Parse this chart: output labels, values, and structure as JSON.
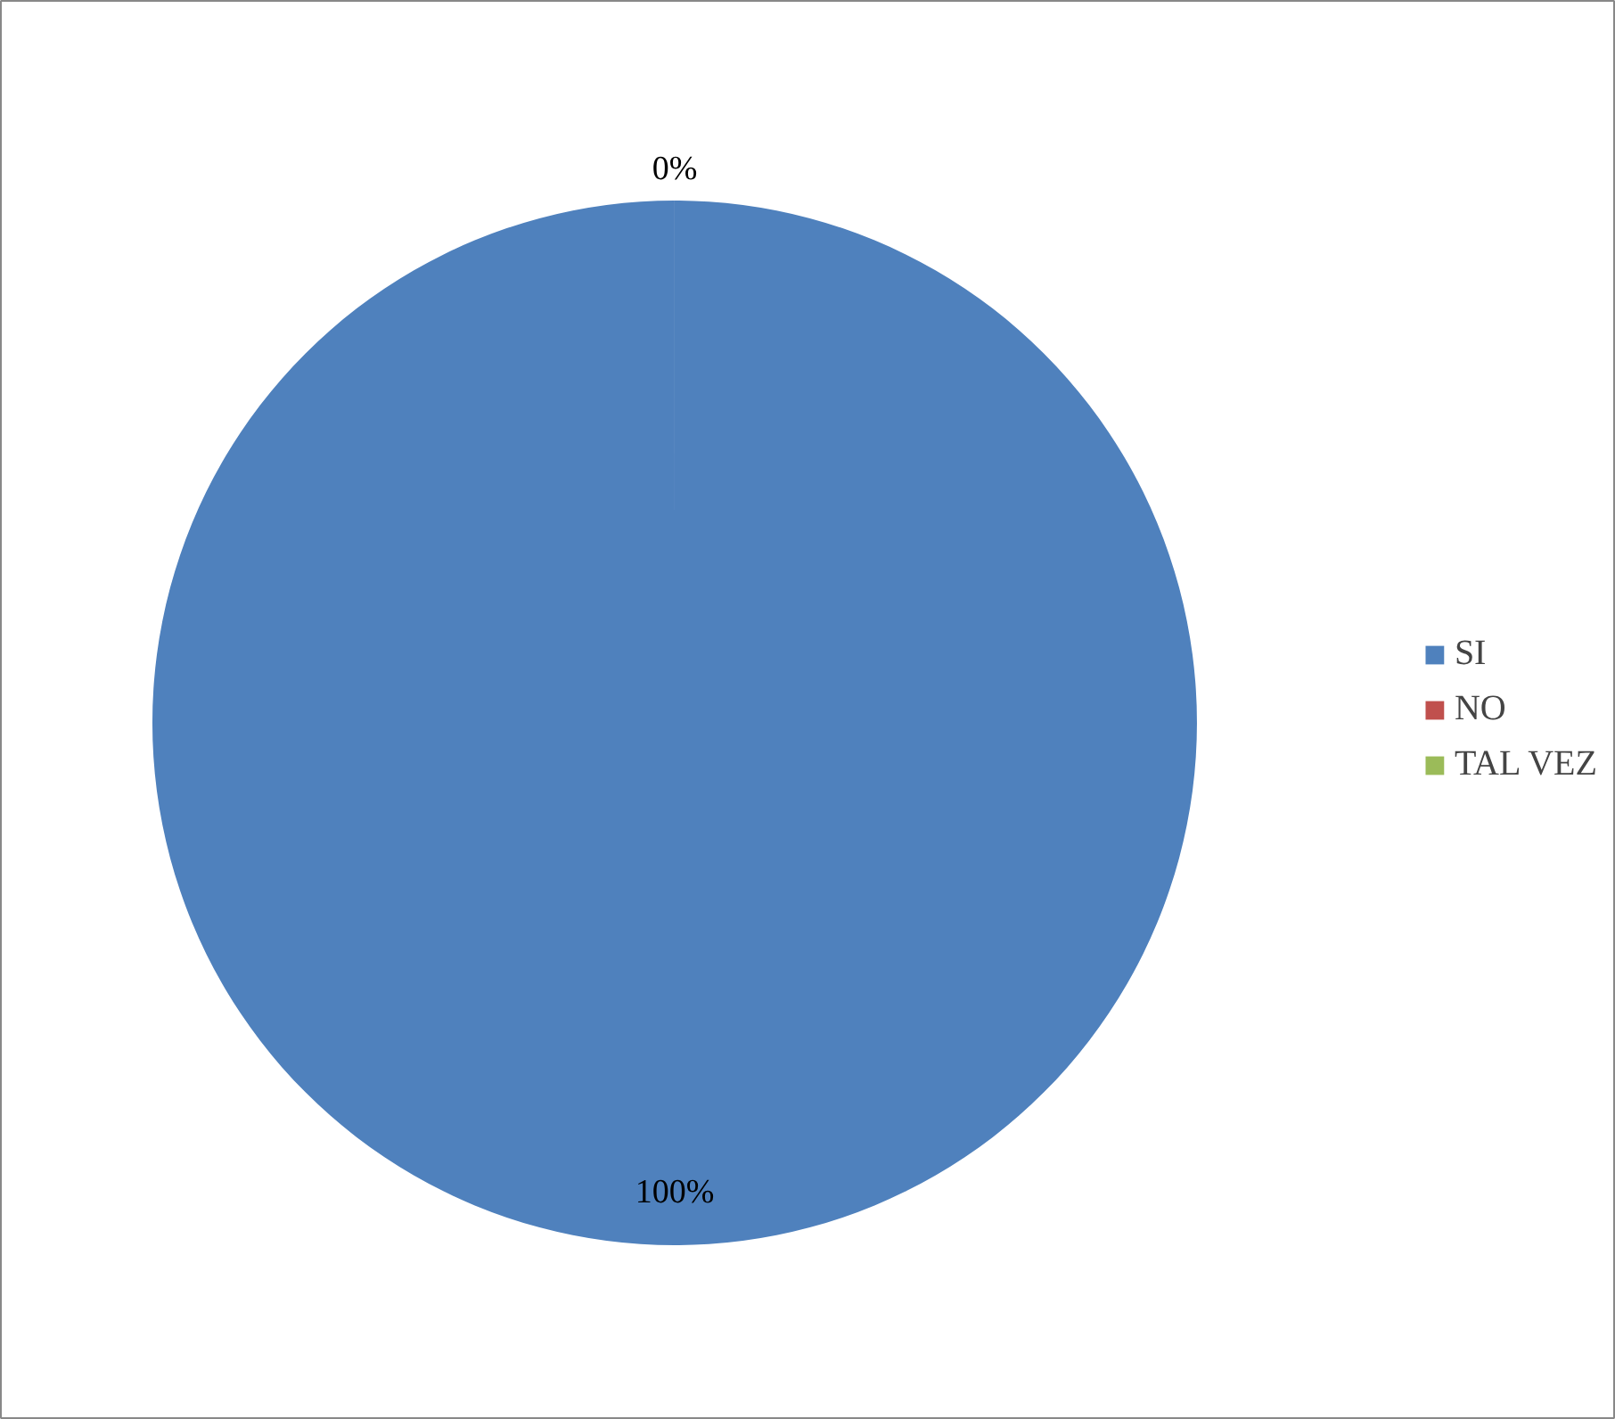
{
  "chart_data": {
    "type": "pie",
    "categories": [
      "SI",
      "NO",
      "TAL VEZ"
    ],
    "values": [
      100,
      0,
      0
    ],
    "colors": [
      "#4f81bd",
      "#c0504d",
      "#9bbb59"
    ],
    "value_labels": [
      "100%",
      "0%",
      null
    ],
    "legend": "right"
  }
}
